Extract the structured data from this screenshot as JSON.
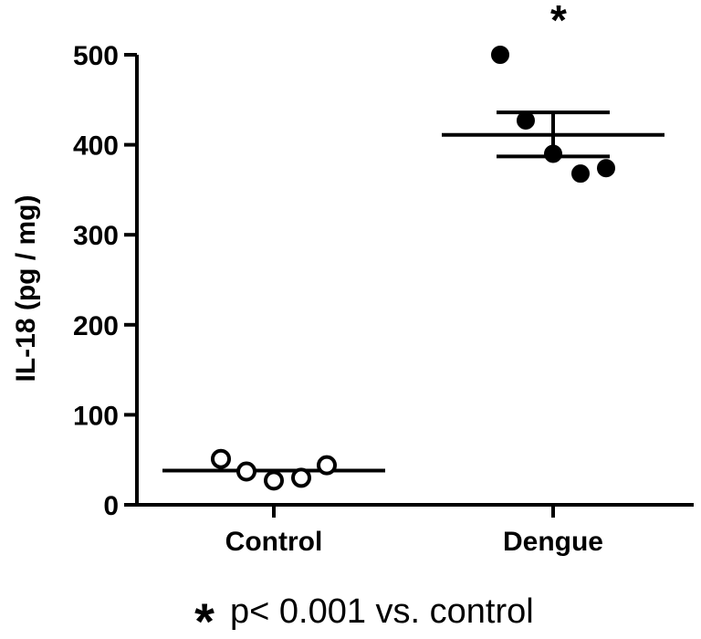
{
  "chart_data": {
    "type": "scatter",
    "ylabel": "IL-18 (pg / mg)",
    "xlabel": "",
    "ylim": [
      0,
      500
    ],
    "yticks": [
      0,
      100,
      200,
      300,
      400,
      500
    ],
    "categories": [
      "Control",
      "Dengue"
    ],
    "grid": false,
    "series": [
      {
        "category": "Control",
        "marker": "open-circle",
        "values": [
          51,
          37,
          27,
          30,
          44
        ],
        "mean": 38
      },
      {
        "category": "Dengue",
        "marker": "filled-circle",
        "values": [
          500,
          427,
          390,
          368,
          374
        ],
        "mean": 411,
        "sem_upper": 436,
        "sem_lower": 387
      }
    ],
    "significance_marker": "*",
    "footnote": {
      "symbol": "*",
      "text": "p< 0.001 vs. control"
    }
  },
  "colors": {
    "foreground": "#000000",
    "background": "#ffffff"
  }
}
